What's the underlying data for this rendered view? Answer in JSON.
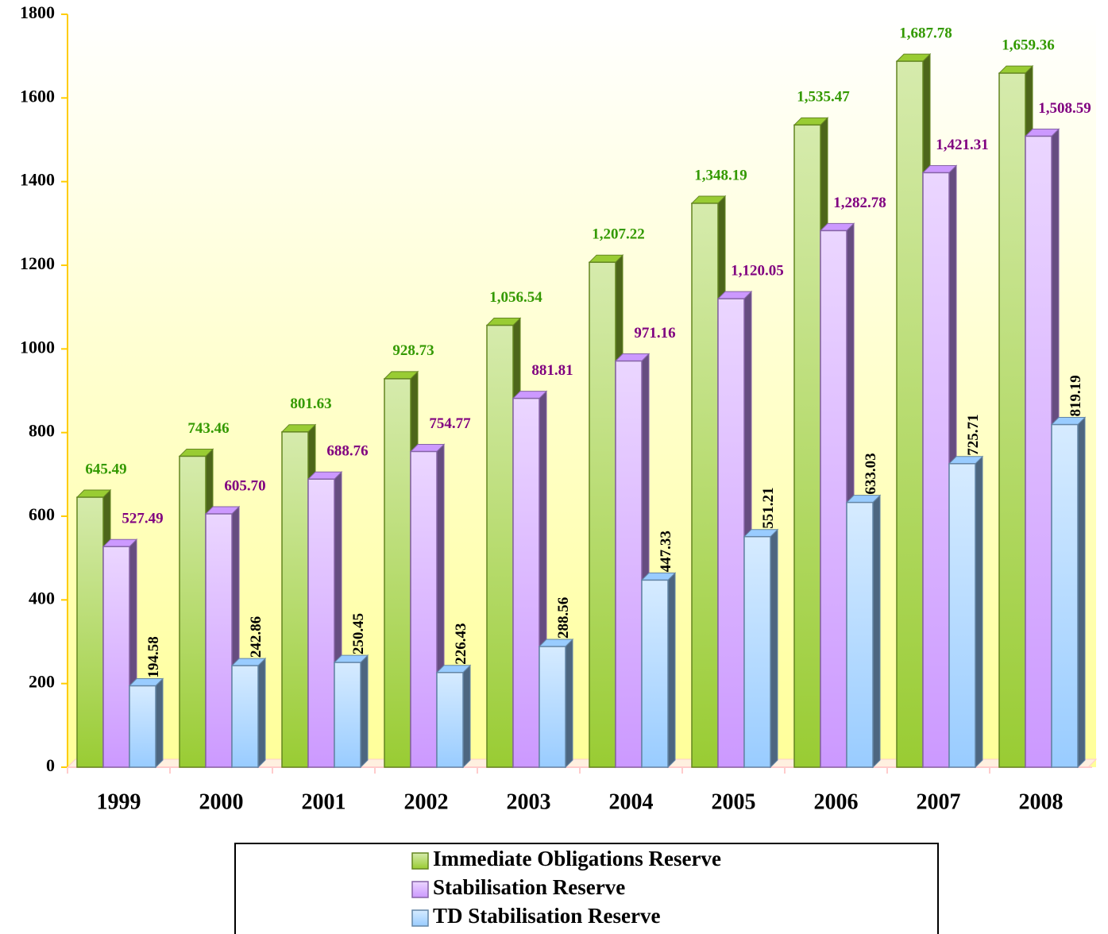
{
  "chart_data": {
    "type": "bar3d",
    "categories": [
      "1999",
      "2000",
      "2001",
      "2002",
      "2003",
      "2004",
      "2005",
      "2006",
      "2007",
      "2008"
    ],
    "series": [
      {
        "name": "Immediate Obligations Reserve",
        "color": "#99cc33",
        "label_color": "#339900",
        "values": [
          645.49,
          743.46,
          801.63,
          928.73,
          1056.54,
          1207.22,
          1348.19,
          1535.47,
          1687.78,
          1659.36
        ],
        "value_labels": [
          "645.49",
          "743.46",
          "801.63",
          "928.73",
          "1,056.54",
          "1,207.22",
          "1,348.19",
          "1,535.47",
          "1,687.78",
          "1,659.36"
        ]
      },
      {
        "name": "Stabilisation Reserve",
        "color": "#cc99ff",
        "label_color": "#800080",
        "values": [
          527.49,
          605.7,
          688.76,
          754.77,
          881.81,
          971.16,
          1120.05,
          1282.78,
          1421.31,
          1508.59
        ],
        "value_labels": [
          "527.49",
          "605.70",
          "688.76",
          "754.77",
          "881.81",
          "971.16",
          "1,120.05",
          "1,282.78",
          "1,421.31",
          "1,508.59"
        ]
      },
      {
        "name": "TD Stabilisation Reserve",
        "color": "#99ccff",
        "label_color": "#000000",
        "values": [
          194.58,
          242.86,
          250.45,
          226.43,
          288.56,
          447.33,
          551.21,
          633.03,
          725.71,
          819.19
        ],
        "value_labels": [
          "194.58",
          "242.86",
          "250.45",
          "226.43",
          "288.56",
          "447.33",
          "551.21",
          "633.03",
          "725.71",
          "819.19"
        ]
      }
    ],
    "ylim": [
      0,
      1800
    ],
    "yticks": [
      0,
      200,
      400,
      600,
      800,
      1000,
      1200,
      1400,
      1600,
      1800
    ]
  }
}
